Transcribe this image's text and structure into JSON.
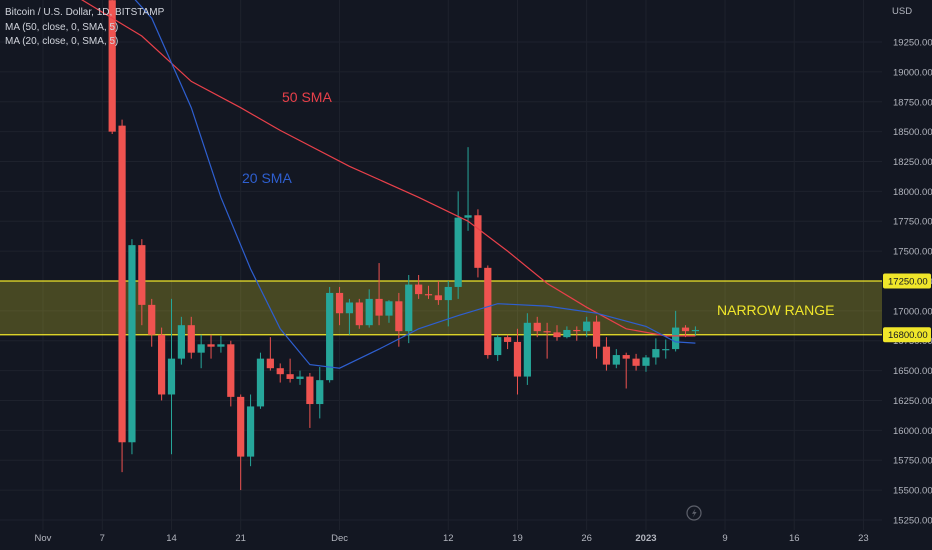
{
  "legend": {
    "title": "Bitcoin / U.S. Dollar, 1D, BITSTAMP",
    "ma50": "MA (50, close, 0, SMA, 5)",
    "ma20": "MA (20, close, 0, SMA, 5)"
  },
  "colors": {
    "background": "#131722",
    "grid": "#1e222d",
    "up": "#26a69a",
    "down": "#ef5350",
    "ma50": "#e8404a",
    "ma20": "#2e5fd0",
    "band": "#f0e62a",
    "axis_text": "#b2b5be"
  },
  "chart_data": {
    "type": "candlestick",
    "currency_label": "USD",
    "y_ticks": [
      "19250.00",
      "19000.00",
      "18750.00",
      "18500.00",
      "18250.00",
      "18000.00",
      "17750.00",
      "17500.00",
      "17250.00",
      "17000.00",
      "16750.00",
      "16500.00",
      "16250.00",
      "16000.00",
      "15750.00",
      "15500.00",
      "15250.00"
    ],
    "ylim": [
      15200,
      19600
    ],
    "x_ticks": [
      {
        "label": "Nov",
        "date": "2022-11-01"
      },
      {
        "label": "7",
        "date": "2022-11-07"
      },
      {
        "label": "14",
        "date": "2022-11-14"
      },
      {
        "label": "21",
        "date": "2022-11-21"
      },
      {
        "label": "Dec",
        "date": "2022-12-01"
      },
      {
        "label": "12",
        "date": "2022-12-12"
      },
      {
        "label": "19",
        "date": "2022-12-19"
      },
      {
        "label": "26",
        "date": "2022-12-26"
      },
      {
        "label": "2023",
        "date": "2023-01-01"
      },
      {
        "label": "9",
        "date": "2023-01-09"
      },
      {
        "label": "16",
        "date": "2023-01-16"
      },
      {
        "label": "23",
        "date": "2023-01-23"
      }
    ],
    "range_band": {
      "low": 16800,
      "high": 17250
    },
    "price_labels": [
      "17250.00",
      "16800.00"
    ],
    "annotations": {
      "ma50": "50 SMA",
      "ma20": "20 SMA",
      "range": "NARROW RANGE"
    },
    "candles": [
      {
        "date": "2022-11-08",
        "o": 19600,
        "h": 19650,
        "l": 18480,
        "c": 18500
      },
      {
        "date": "2022-11-09",
        "o": 18550,
        "h": 18600,
        "l": 15650,
        "c": 15900
      },
      {
        "date": "2022-11-10",
        "o": 15900,
        "h": 17600,
        "l": 15800,
        "c": 17550
      },
      {
        "date": "2022-11-11",
        "o": 17550,
        "h": 17600,
        "l": 16880,
        "c": 17050
      },
      {
        "date": "2022-11-12",
        "o": 17050,
        "h": 17100,
        "l": 16700,
        "c": 16800
      },
      {
        "date": "2022-11-13",
        "o": 16800,
        "h": 16860,
        "l": 16250,
        "c": 16300
      },
      {
        "date": "2022-11-14",
        "o": 16300,
        "h": 17100,
        "l": 15800,
        "c": 16600
      },
      {
        "date": "2022-11-15",
        "o": 16600,
        "h": 16950,
        "l": 16550,
        "c": 16880
      },
      {
        "date": "2022-11-16",
        "o": 16880,
        "h": 16950,
        "l": 16600,
        "c": 16650
      },
      {
        "date": "2022-11-17",
        "o": 16650,
        "h": 16800,
        "l": 16520,
        "c": 16720
      },
      {
        "date": "2022-11-18",
        "o": 16720,
        "h": 16800,
        "l": 16600,
        "c": 16700
      },
      {
        "date": "2022-11-19",
        "o": 16700,
        "h": 16790,
        "l": 16650,
        "c": 16720
      },
      {
        "date": "2022-11-20",
        "o": 16720,
        "h": 16750,
        "l": 16200,
        "c": 16280
      },
      {
        "date": "2022-11-21",
        "o": 16280,
        "h": 16300,
        "l": 15500,
        "c": 15780
      },
      {
        "date": "2022-11-22",
        "o": 15780,
        "h": 16300,
        "l": 15700,
        "c": 16200
      },
      {
        "date": "2022-11-23",
        "o": 16200,
        "h": 16650,
        "l": 16180,
        "c": 16600
      },
      {
        "date": "2022-11-24",
        "o": 16600,
        "h": 16780,
        "l": 16500,
        "c": 16520
      },
      {
        "date": "2022-11-25",
        "o": 16520,
        "h": 16560,
        "l": 16400,
        "c": 16470
      },
      {
        "date": "2022-11-26",
        "o": 16470,
        "h": 16600,
        "l": 16400,
        "c": 16430
      },
      {
        "date": "2022-11-27",
        "o": 16430,
        "h": 16500,
        "l": 16380,
        "c": 16450
      },
      {
        "date": "2022-11-28",
        "o": 16450,
        "h": 16480,
        "l": 16020,
        "c": 16220
      },
      {
        "date": "2022-11-29",
        "o": 16220,
        "h": 16530,
        "l": 16100,
        "c": 16420
      },
      {
        "date": "2022-11-30",
        "o": 16420,
        "h": 17200,
        "l": 16400,
        "c": 17150
      },
      {
        "date": "2022-12-01",
        "o": 17150,
        "h": 17200,
        "l": 16880,
        "c": 16980
      },
      {
        "date": "2022-12-02",
        "o": 16980,
        "h": 17100,
        "l": 16800,
        "c": 17070
      },
      {
        "date": "2022-12-03",
        "o": 17070,
        "h": 17100,
        "l": 16850,
        "c": 16880
      },
      {
        "date": "2022-12-04",
        "o": 16880,
        "h": 17180,
        "l": 16860,
        "c": 17100
      },
      {
        "date": "2022-12-05",
        "o": 17100,
        "h": 17400,
        "l": 16880,
        "c": 16960
      },
      {
        "date": "2022-12-06",
        "o": 16960,
        "h": 17090,
        "l": 16900,
        "c": 17080
      },
      {
        "date": "2022-12-07",
        "o": 17080,
        "h": 17150,
        "l": 16700,
        "c": 16830
      },
      {
        "date": "2022-12-08",
        "o": 16830,
        "h": 17300,
        "l": 16730,
        "c": 17220
      },
      {
        "date": "2022-12-09",
        "o": 17220,
        "h": 17300,
        "l": 17100,
        "c": 17140
      },
      {
        "date": "2022-12-10",
        "o": 17140,
        "h": 17210,
        "l": 17100,
        "c": 17130
      },
      {
        "date": "2022-12-11",
        "o": 17130,
        "h": 17250,
        "l": 17050,
        "c": 17090
      },
      {
        "date": "2022-12-12",
        "o": 17090,
        "h": 17250,
        "l": 16870,
        "c": 17200
      },
      {
        "date": "2022-12-13",
        "o": 17200,
        "h": 18000,
        "l": 17100,
        "c": 17780
      },
      {
        "date": "2022-12-14",
        "o": 17780,
        "h": 18370,
        "l": 17670,
        "c": 17800
      },
      {
        "date": "2022-12-15",
        "o": 17800,
        "h": 17850,
        "l": 17280,
        "c": 17360
      },
      {
        "date": "2022-12-16",
        "o": 17360,
        "h": 17380,
        "l": 16600,
        "c": 16630
      },
      {
        "date": "2022-12-17",
        "o": 16630,
        "h": 16800,
        "l": 16580,
        "c": 16780
      },
      {
        "date": "2022-12-18",
        "o": 16780,
        "h": 16800,
        "l": 16680,
        "c": 16740
      },
      {
        "date": "2022-12-19",
        "o": 16740,
        "h": 16850,
        "l": 16300,
        "c": 16450
      },
      {
        "date": "2022-12-20",
        "o": 16450,
        "h": 16980,
        "l": 16380,
        "c": 16900
      },
      {
        "date": "2022-12-21",
        "o": 16900,
        "h": 16950,
        "l": 16780,
        "c": 16830
      },
      {
        "date": "2022-12-22",
        "o": 16830,
        "h": 16900,
        "l": 16600,
        "c": 16820
      },
      {
        "date": "2022-12-23",
        "o": 16820,
        "h": 16880,
        "l": 16750,
        "c": 16780
      },
      {
        "date": "2022-12-24",
        "o": 16780,
        "h": 16870,
        "l": 16770,
        "c": 16840
      },
      {
        "date": "2022-12-25",
        "o": 16840,
        "h": 16870,
        "l": 16750,
        "c": 16830
      },
      {
        "date": "2022-12-26",
        "o": 16830,
        "h": 16950,
        "l": 16780,
        "c": 16910
      },
      {
        "date": "2022-12-27",
        "o": 16910,
        "h": 16960,
        "l": 16600,
        "c": 16700
      },
      {
        "date": "2022-12-28",
        "o": 16700,
        "h": 16780,
        "l": 16500,
        "c": 16550
      },
      {
        "date": "2022-12-29",
        "o": 16550,
        "h": 16680,
        "l": 16520,
        "c": 16630
      },
      {
        "date": "2022-12-30",
        "o": 16630,
        "h": 16650,
        "l": 16350,
        "c": 16600
      },
      {
        "date": "2022-12-31",
        "o": 16600,
        "h": 16640,
        "l": 16500,
        "c": 16540
      },
      {
        "date": "2023-01-01",
        "o": 16540,
        "h": 16630,
        "l": 16490,
        "c": 16610
      },
      {
        "date": "2023-01-02",
        "o": 16610,
        "h": 16770,
        "l": 16550,
        "c": 16680
      },
      {
        "date": "2023-01-03",
        "o": 16680,
        "h": 16760,
        "l": 16600,
        "c": 16680
      },
      {
        "date": "2023-01-04",
        "o": 16680,
        "h": 17000,
        "l": 16660,
        "c": 16860
      },
      {
        "date": "2023-01-05",
        "o": 16860,
        "h": 16880,
        "l": 16780,
        "c": 16830
      },
      {
        "date": "2023-01-06",
        "o": 16830,
        "h": 16870,
        "l": 16790,
        "c": 16840
      }
    ],
    "ma50_points": [
      {
        "date": "2022-10-31",
        "v": 19900
      },
      {
        "date": "2022-11-04",
        "v": 19650
      },
      {
        "date": "2022-11-11",
        "v": 19300
      },
      {
        "date": "2022-11-16",
        "v": 18920
      },
      {
        "date": "2022-11-21",
        "v": 18700
      },
      {
        "date": "2022-11-25",
        "v": 18510
      },
      {
        "date": "2022-12-02",
        "v": 18210
      },
      {
        "date": "2022-12-09",
        "v": 17950
      },
      {
        "date": "2022-12-14",
        "v": 17750
      },
      {
        "date": "2022-12-18",
        "v": 17500
      },
      {
        "date": "2022-12-22",
        "v": 17230
      },
      {
        "date": "2022-12-26",
        "v": 17030
      },
      {
        "date": "2022-12-30",
        "v": 16850
      },
      {
        "date": "2023-01-03",
        "v": 16790
      },
      {
        "date": "2023-01-06",
        "v": 16790
      }
    ],
    "ma20_points": [
      {
        "date": "2022-11-01",
        "v": 20200
      },
      {
        "date": "2022-11-06",
        "v": 20000
      },
      {
        "date": "2022-11-12",
        "v": 19450
      },
      {
        "date": "2022-11-16",
        "v": 18700
      },
      {
        "date": "2022-11-19",
        "v": 17950
      },
      {
        "date": "2022-11-22",
        "v": 17350
      },
      {
        "date": "2022-11-25",
        "v": 16850
      },
      {
        "date": "2022-11-28",
        "v": 16550
      },
      {
        "date": "2022-12-01",
        "v": 16520
      },
      {
        "date": "2022-12-05",
        "v": 16680
      },
      {
        "date": "2022-12-09",
        "v": 16850
      },
      {
        "date": "2022-12-13",
        "v": 16960
      },
      {
        "date": "2022-12-17",
        "v": 17060
      },
      {
        "date": "2022-12-22",
        "v": 17040
      },
      {
        "date": "2022-12-27",
        "v": 16980
      },
      {
        "date": "2023-01-01",
        "v": 16870
      },
      {
        "date": "2023-01-04",
        "v": 16740
      },
      {
        "date": "2023-01-06",
        "v": 16730
      }
    ]
  }
}
